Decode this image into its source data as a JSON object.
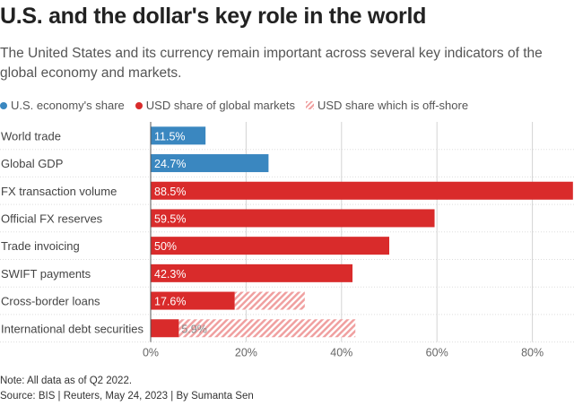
{
  "title": "U.S. and the dollar's key role in the world",
  "subtitle": "The United States and its currency remain important across several key indicators of the global economy and markets.",
  "colors": {
    "economy": "#3a87c0",
    "markets": "#d92b2b",
    "offshore": "#f0a0a0"
  },
  "chart_data": {
    "type": "bar",
    "orientation": "horizontal",
    "legend": [
      "U.S. economy's share",
      "USD share of global markets",
      "USD share which is off-shore"
    ],
    "legend_placement": "top-left",
    "categories": [
      "World trade",
      "Global GDP",
      "FX transaction volume",
      "Official FX reserves",
      "Trade invoicing",
      "SWIFT payments",
      "Cross-border loans",
      "International debt securities"
    ],
    "values": [
      11.5,
      24.7,
      88.5,
      59.5,
      50,
      42.3,
      17.6,
      5.9
    ],
    "labels": [
      "11.5%",
      "24.7%",
      "88.5%",
      "59.5%",
      "50%",
      "42.3%",
      "17.6%",
      "5.9%"
    ],
    "series_type": [
      "economy",
      "economy",
      "markets",
      "markets",
      "markets",
      "markets",
      "markets",
      "markets"
    ],
    "offshore_bar_end": [
      null,
      null,
      null,
      null,
      null,
      null,
      32.3,
      42.9
    ],
    "xlim": [
      0,
      88.5
    ],
    "xticks": [
      "0%",
      "20%",
      "40%",
      "60%",
      "80%"
    ],
    "xtick_values": [
      0,
      20,
      40,
      60,
      80
    ],
    "grid": true
  },
  "notes": {
    "note": "Note: All data as of Q2 2022.",
    "source": "Source: BIS | Reuters, May 24, 2023 | By Sumanta Sen"
  }
}
